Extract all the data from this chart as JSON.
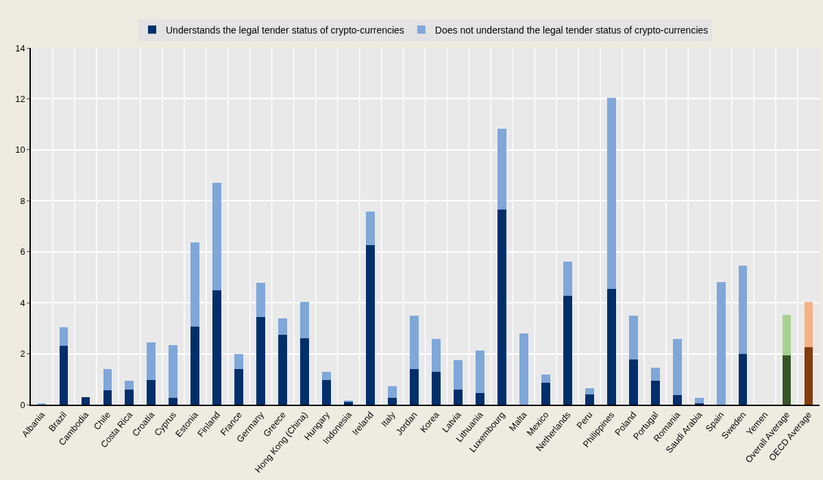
{
  "chart_data": {
    "type": "bar",
    "stacked": true,
    "categories": [
      "Albania",
      "Brazil",
      "Cambodia",
      "Chile",
      "Costa Rica",
      "Croatia",
      "Cyprus",
      "Estonia",
      "Finland",
      "France",
      "Germany",
      "Greece",
      "Hong Kong (China)",
      "Hungary",
      "Indonesia",
      "Ireland",
      "Italy",
      "Jordan",
      "Korea",
      "Latvia",
      "Lithuania",
      "Luxembourg",
      "Malta",
      "Mexico",
      "Netherlands",
      "Peru",
      "Philippines",
      "Poland",
      "Portugal",
      "Romania",
      "Saudi Arabia",
      "Spain",
      "Sweden",
      "Yemen",
      "Overall Average",
      "OECD Average"
    ],
    "series": [
      {
        "name": "Understands the legal tender status of crypto-currencies",
        "colors": [
          "#002f6c",
          "#002f6c",
          "#002f6c",
          "#002f6c",
          "#002f6c",
          "#002f6c",
          "#002f6c",
          "#002f6c",
          "#002f6c",
          "#002f6c",
          "#002f6c",
          "#002f6c",
          "#002f6c",
          "#002f6c",
          "#002f6c",
          "#002f6c",
          "#002f6c",
          "#002f6c",
          "#002f6c",
          "#002f6c",
          "#002f6c",
          "#002f6c",
          "#002f6c",
          "#002f6c",
          "#002f6c",
          "#002f6c",
          "#002f6c",
          "#002f6c",
          "#002f6c",
          "#002f6c",
          "#002f6c",
          "#002f6c",
          "#002f6c",
          "#002f6c",
          "#375623",
          "#843c0c"
        ],
        "values": [
          0,
          2.31,
          0.3,
          0.57,
          0.6,
          0.98,
          0.28,
          3.07,
          4.5,
          1.4,
          3.45,
          2.75,
          2.62,
          0.97,
          0.1,
          6.25,
          0.27,
          1.4,
          1.3,
          0.6,
          0.45,
          7.65,
          0,
          0.87,
          4.27,
          0.4,
          4.55,
          1.78,
          0.93,
          0.38,
          0.05,
          0,
          2.0,
          0,
          1.93,
          2.27
        ]
      },
      {
        "name": "Does not understand the legal tender status of crypto-currencies",
        "colors": [
          "#7fa7d9",
          "#7fa7d9",
          "#7fa7d9",
          "#7fa7d9",
          "#7fa7d9",
          "#7fa7d9",
          "#7fa7d9",
          "#7fa7d9",
          "#7fa7d9",
          "#7fa7d9",
          "#7fa7d9",
          "#7fa7d9",
          "#7fa7d9",
          "#7fa7d9",
          "#7fa7d9",
          "#7fa7d9",
          "#7fa7d9",
          "#7fa7d9",
          "#7fa7d9",
          "#7fa7d9",
          "#7fa7d9",
          "#7fa7d9",
          "#7fa7d9",
          "#7fa7d9",
          "#7fa7d9",
          "#7fa7d9",
          "#7fa7d9",
          "#7fa7d9",
          "#7fa7d9",
          "#7fa7d9",
          "#7fa7d9",
          "#7fa7d9",
          "#7fa7d9",
          "#7fa7d9",
          "#a9d18e",
          "#f4b183"
        ],
        "values": [
          0.05,
          0.73,
          0,
          0.83,
          0.33,
          1.47,
          2.07,
          3.3,
          4.2,
          0.6,
          1.33,
          0.63,
          1.4,
          0.33,
          0.07,
          1.32,
          0.46,
          2.1,
          1.28,
          1.15,
          1.68,
          3.17,
          2.8,
          0.31,
          1.35,
          0.25,
          7.5,
          1.72,
          0.52,
          2.2,
          0.22,
          4.82,
          3.45,
          0,
          1.6,
          1.75
        ]
      }
    ],
    "ylim": [
      0,
      14
    ],
    "yticks": [
      0,
      2,
      4,
      6,
      8,
      10,
      12,
      14
    ],
    "grid": true,
    "legend": "top"
  }
}
